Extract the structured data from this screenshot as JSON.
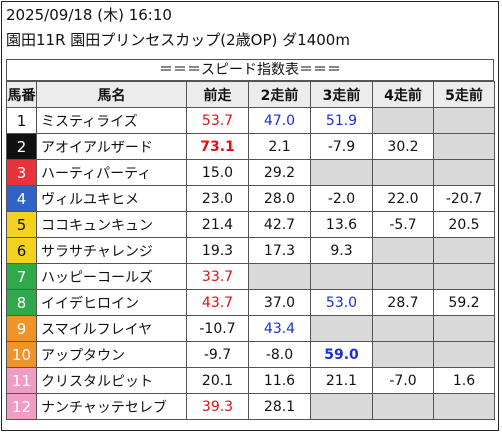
{
  "header": {
    "datetime": "2025/09/18 (木) 16:10",
    "race": "園田11R 園田プリンセスカップ(2歳OP) ダ1400m"
  },
  "banner": "＝＝＝スピード指数表＝＝＝",
  "columns": [
    "馬番",
    "馬名",
    "前走",
    "2走前",
    "3走前",
    "4走前",
    "5走前"
  ],
  "frame_colors": [
    "#ffffff",
    "#111111",
    "#e8333a",
    "#2f63c8",
    "#f2d21f",
    "#2fa94a",
    "#f0942a",
    "#f09cc4"
  ],
  "rows": [
    {
      "no": "1",
      "frame": 1,
      "name": "ミスティライズ",
      "vals": [
        {
          "v": "53.7",
          "c": "red"
        },
        {
          "v": "47.0",
          "c": "blue"
        },
        {
          "v": "51.9",
          "c": "blue"
        },
        null,
        null
      ]
    },
    {
      "no": "2",
      "frame": 2,
      "name": "アオイアルザード",
      "vals": [
        {
          "v": "73.1",
          "c": "red",
          "b": true
        },
        {
          "v": "2.1"
        },
        {
          "v": "-7.9"
        },
        {
          "v": "30.2"
        },
        null
      ]
    },
    {
      "no": "3",
      "frame": 3,
      "name": "ハーティパーティ",
      "vals": [
        {
          "v": "15.0"
        },
        {
          "v": "29.2"
        },
        null,
        null,
        null
      ]
    },
    {
      "no": "4",
      "frame": 4,
      "name": "ヴィルユキヒメ",
      "vals": [
        {
          "v": "23.0"
        },
        {
          "v": "28.0"
        },
        {
          "v": "-2.0"
        },
        {
          "v": "22.0"
        },
        {
          "v": "-20.7"
        }
      ]
    },
    {
      "no": "5",
      "frame": 5,
      "name": "ココキュンキュン",
      "vals": [
        {
          "v": "21.4"
        },
        {
          "v": "42.7"
        },
        {
          "v": "13.6"
        },
        {
          "v": "-5.7"
        },
        {
          "v": "20.5"
        }
      ]
    },
    {
      "no": "6",
      "frame": 5,
      "name": "サラサチャレンジ",
      "vals": [
        {
          "v": "19.3"
        },
        {
          "v": "17.3"
        },
        {
          "v": "9.3"
        },
        null,
        null
      ]
    },
    {
      "no": "7",
      "frame": 6,
      "name": "ハッピーコールズ",
      "vals": [
        {
          "v": "33.7",
          "c": "red"
        },
        null,
        null,
        null,
        null
      ]
    },
    {
      "no": "8",
      "frame": 6,
      "name": "イイデヒロイン",
      "vals": [
        {
          "v": "43.7",
          "c": "red"
        },
        {
          "v": "37.0"
        },
        {
          "v": "53.0",
          "c": "blue"
        },
        {
          "v": "28.7"
        },
        {
          "v": "59.2"
        }
      ]
    },
    {
      "no": "9",
      "frame": 7,
      "name": "スマイルフレイヤ",
      "vals": [
        {
          "v": "-10.7"
        },
        {
          "v": "43.4",
          "c": "blue"
        },
        null,
        null,
        null
      ]
    },
    {
      "no": "10",
      "frame": 7,
      "name": "アップタウン",
      "vals": [
        {
          "v": "-9.7"
        },
        {
          "v": "-8.0"
        },
        {
          "v": "59.0",
          "c": "blue",
          "b": true
        },
        null,
        null
      ]
    },
    {
      "no": "11",
      "frame": 8,
      "name": "クリスタルピット",
      "vals": [
        {
          "v": "20.1"
        },
        {
          "v": "11.6"
        },
        {
          "v": "21.1"
        },
        {
          "v": "-7.0"
        },
        {
          "v": "1.6"
        }
      ]
    },
    {
      "no": "12",
      "frame": 8,
      "name": "ナンチャッテセレブ",
      "vals": [
        {
          "v": "39.3",
          "c": "red"
        },
        {
          "v": "28.1"
        },
        null,
        null,
        null
      ]
    }
  ]
}
